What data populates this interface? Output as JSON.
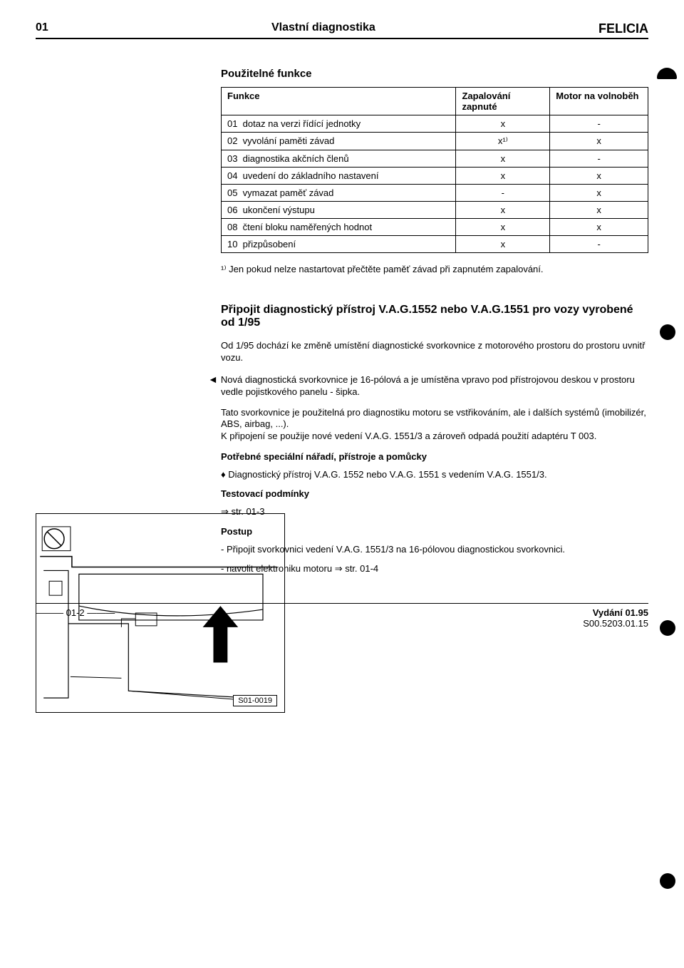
{
  "header": {
    "chapter": "01",
    "title": "Vlastní diagnostika",
    "model": "FELICIA"
  },
  "usable_functions_title": "Použitelné funkce",
  "table": {
    "col_function": "Funkce",
    "col_ignition": "Zapalování zapnuté",
    "col_idle": "Motor na volnoběh",
    "rows": [
      {
        "num": "01",
        "text": "dotaz na verzi řídící jednotky",
        "c1": "x",
        "c2": "-"
      },
      {
        "num": "02",
        "text": "vyvolání paměti závad",
        "c1": "x¹⁾",
        "c2": "x"
      },
      {
        "num": "03",
        "text": "diagnostika akčních členů",
        "c1": "x",
        "c2": "-"
      },
      {
        "num": "04",
        "text": "uvedení do základního nastavení",
        "c1": "x",
        "c2": "x"
      },
      {
        "num": "05",
        "text": "vymazat paměť závad",
        "c1": "-",
        "c2": "x"
      },
      {
        "num": "06",
        "text": "ukončení výstupu",
        "c1": "x",
        "c2": "x"
      },
      {
        "num": "08",
        "text": "čtení bloku naměřených hodnot",
        "c1": "x",
        "c2": "x"
      },
      {
        "num": "10",
        "text": "přizpůsobení",
        "c1": "x",
        "c2": "-"
      }
    ]
  },
  "footnote": "¹⁾  Jen pokud nelze nastartovat přečtěte paměť závad při zapnutém zapalování.",
  "heading2": "Připojit diagnostický přístroj V.A.G.1552 nebo V.A.G.1551 pro vozy vyrobené od 1/95",
  "para1": "Od 1/95 dochází ke změně umístění diagnostické svorkovnice z motorového prostoru do prostoru uvnitř vozu.",
  "para_arrow": "Nová diagnostická svorkovnice je 16-pólová a je umístěna vpravo pod přístrojovou deskou v prostoru vedle pojistkového panelu - šipka.",
  "para3": "Tato svorkovnice je použitelná pro diagnostiku motoru se vstřikováním, ale i dalších systémů (imobilizér, ABS, airbag, ...).\nK připojení se použije nové vedení V.A.G. 1551/3 a zároveň odpadá použití adaptéru T 003.",
  "tools_heading": "Potřebné speciální nářadí, přístroje a pomůcky",
  "tool_bullet": "Diagnostický přístroj V.A.G. 1552 nebo V.A.G. 1551 s vedením V.A.G. 1551/3.",
  "test_cond_heading": "Testovací podmínky",
  "test_cond_line": "⇒ str. 01-3",
  "procedure_heading": "Postup",
  "step1": "Připojit svorkovnici vedení V.A.G. 1551/3 na 16-pólovou diagnostickou svorkovnici.",
  "step2": "navolit elektroniku motoru ⇒ str. 01-4",
  "figure_label": "S01-0019",
  "footer": {
    "page": "01-2",
    "edition": "Vydání 01.95",
    "code": "S00.5203.01.15"
  }
}
